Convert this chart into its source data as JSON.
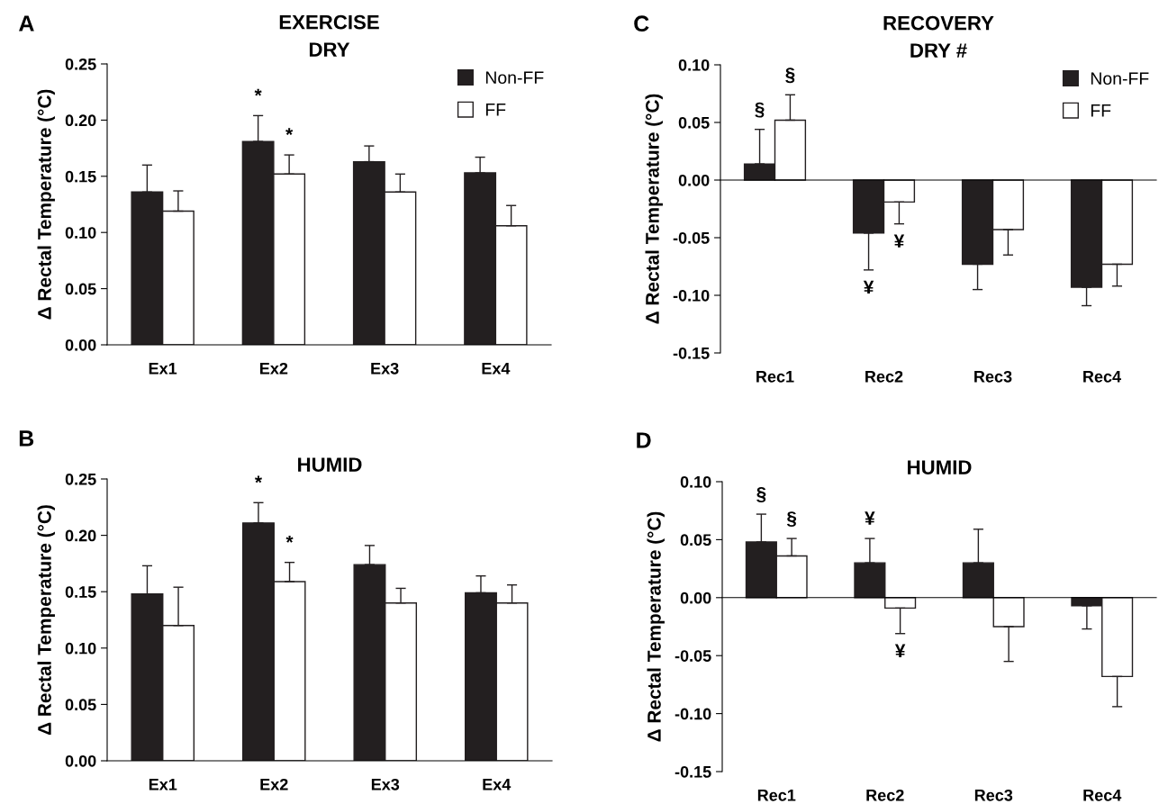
{
  "chart_data": [
    {
      "type": "bar",
      "title": "EXERCISE\nDRY",
      "ylabel": "Δ Rectal Temperature (°C)",
      "categories": [
        "Ex1",
        "Ex2",
        "Ex3",
        "Ex4"
      ],
      "series": [
        {
          "name": "Non-FF",
          "color": "#231f20",
          "values": [
            0.136,
            0.181,
            0.163,
            0.153
          ],
          "errors": [
            [
              0.136,
              0.16
            ],
            [
              0.181,
              0.204
            ],
            [
              0.163,
              0.177
            ],
            [
              0.153,
              0.167
            ]
          ],
          "value_labels": [
            null,
            "*",
            null,
            null
          ]
        },
        {
          "name": "FF",
          "color": "#ffffff",
          "values": [
            0.119,
            0.152,
            0.136,
            0.106
          ],
          "errors": [
            [
              0.119,
              0.137
            ],
            [
              0.152,
              0.169
            ],
            [
              0.136,
              0.152
            ],
            [
              0.106,
              0.124
            ]
          ],
          "value_labels": [
            null,
            "*",
            null,
            null
          ]
        }
      ],
      "ylim": [
        0,
        0.25
      ],
      "yticks": [
        {
          "value": 0,
          "label": "0.00"
        },
        {
          "value": 0.05,
          "label": "0.05"
        },
        {
          "value": 0.1,
          "label": "0.10"
        },
        {
          "value": 0.15,
          "label": "0.15"
        },
        {
          "value": 0.2,
          "label": "0.20"
        },
        {
          "value": 0.25,
          "label": "0.25"
        }
      ],
      "legend": "top right",
      "annotations": [
        "A"
      ]
    },
    {
      "type": "bar",
      "title": "RECOVERY\nDRY #",
      "ylabel": "Δ Rectal Temperature (°C)",
      "categories": [
        "Rec1",
        "Rec2",
        "Rec3",
        "Rec4"
      ],
      "series": [
        {
          "name": "Non-FF",
          "color": "#231f20",
          "values": [
            0.014,
            -0.046,
            -0.073,
            -0.093
          ],
          "errors": [
            [
              0.014,
              0.044
            ],
            [
              -0.078,
              -0.046
            ],
            [
              -0.095,
              -0.073
            ],
            [
              -0.109,
              -0.093
            ]
          ],
          "value_labels": [
            "§",
            "¥",
            null,
            null
          ]
        },
        {
          "name": "FF",
          "color": "#ffffff",
          "values": [
            0.052,
            -0.019,
            -0.043,
            -0.073
          ],
          "errors": [
            [
              0.052,
              0.074
            ],
            [
              -0.038,
              -0.019
            ],
            [
              -0.065,
              -0.043
            ],
            [
              -0.092,
              -0.073
            ]
          ],
          "value_labels": [
            "§",
            "¥",
            null,
            null
          ]
        }
      ],
      "ylim": [
        -0.15,
        0.1
      ],
      "yticks": [
        {
          "value": -0.15,
          "label": "-0.15"
        },
        {
          "value": -0.1,
          "label": "-0.10"
        },
        {
          "value": -0.05,
          "label": "-0.05"
        },
        {
          "value": 0,
          "label": "0.00"
        },
        {
          "value": 0.05,
          "label": "0.05"
        },
        {
          "value": 0.1,
          "label": "0.10"
        }
      ],
      "legend": "top right",
      "annotations": [
        "C"
      ]
    },
    {
      "type": "bar",
      "title": "HUMID",
      "ylabel": "Δ Rectal Temperature (°C)",
      "categories": [
        "Ex1",
        "Ex2",
        "Ex3",
        "Ex4"
      ],
      "series": [
        {
          "color": "#231f20",
          "values": [
            0.148,
            0.211,
            0.174,
            0.149
          ],
          "errors": [
            [
              0.148,
              0.173
            ],
            [
              0.211,
              0.229
            ],
            [
              0.174,
              0.191
            ],
            [
              0.149,
              0.164
            ]
          ],
          "value_labels": [
            null,
            "*",
            null,
            null
          ]
        },
        {
          "color": "#ffffff",
          "values": [
            0.12,
            0.159,
            0.14,
            0.14
          ],
          "errors": [
            [
              0.12,
              0.154
            ],
            [
              0.159,
              0.176
            ],
            [
              0.14,
              0.153
            ],
            [
              0.14,
              0.156
            ]
          ],
          "value_labels": [
            null,
            "*",
            null,
            null
          ]
        }
      ],
      "ylim": [
        0,
        0.25
      ],
      "yticks": [
        {
          "value": 0,
          "label": "0.00"
        },
        {
          "value": 0.05,
          "label": "0.05"
        },
        {
          "value": 0.1,
          "label": "0.10"
        },
        {
          "value": 0.15,
          "label": "0.15"
        },
        {
          "value": 0.2,
          "label": "0.20"
        },
        {
          "value": 0.25,
          "label": "0.25"
        }
      ],
      "annotations": [
        "B"
      ]
    },
    {
      "type": "bar",
      "title": "HUMID",
      "ylabel": "Δ Rectal Temperature (°C)",
      "categories": [
        "Rec1",
        "Rec2",
        "Rec3",
        "Rec4"
      ],
      "series": [
        {
          "color": "#231f20",
          "values": [
            0.048,
            0.03,
            0.03,
            -0.007
          ],
          "errors": [
            [
              0.048,
              0.072
            ],
            [
              0.03,
              0.051
            ],
            [
              0.03,
              0.059
            ],
            [
              -0.027,
              -0.007
            ]
          ],
          "value_labels": [
            "§",
            "¥",
            null,
            null
          ]
        },
        {
          "color": "#ffffff",
          "values": [
            0.036,
            -0.009,
            -0.025,
            -0.068
          ],
          "errors": [
            [
              0.036,
              0.051
            ],
            [
              -0.031,
              -0.009
            ],
            [
              -0.055,
              -0.025
            ],
            [
              -0.094,
              -0.068
            ]
          ],
          "value_labels": [
            "§",
            "¥",
            null,
            null
          ]
        }
      ],
      "ylim": [
        -0.15,
        0.1
      ],
      "yticks": [
        {
          "value": -0.15,
          "label": "-0.15"
        },
        {
          "value": -0.1,
          "label": "-0.10"
        },
        {
          "value": -0.05,
          "label": "-0.05"
        },
        {
          "value": 0,
          "label": "0.00"
        },
        {
          "value": 0.05,
          "label": "0.05"
        },
        {
          "value": 0.1,
          "label": "0.10"
        }
      ],
      "annotations": [
        "D"
      ]
    }
  ]
}
